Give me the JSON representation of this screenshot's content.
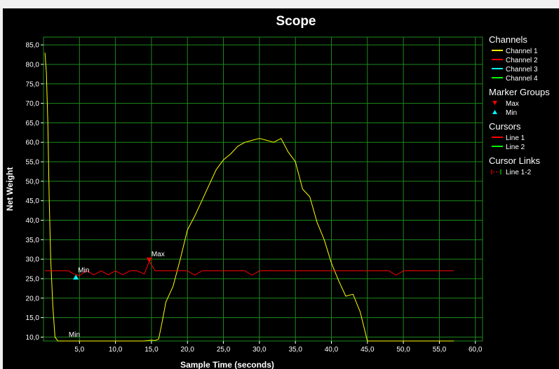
{
  "colors": {
    "background": "#000000",
    "grid": "#1c8a1c",
    "channel1": "#ffff00",
    "channel2": "#ff0000",
    "channel3": "#00ffff",
    "channel4": "#00ff00",
    "cursor1": "#ff0000",
    "cursor2": "#00ff00"
  },
  "chart_data": {
    "type": "line",
    "title": "Scope",
    "xlabel": "Sample Time (seconds)",
    "ylabel": "Net Weight",
    "xlim": [
      0,
      61
    ],
    "ylim": [
      9,
      87
    ],
    "grid": true,
    "legend_position": "right",
    "x_ticks": [
      "5,0",
      "10,0",
      "15,0",
      "20,0",
      "25,0",
      "30,0",
      "35,0",
      "40,0",
      "45,0",
      "50,0",
      "55,0",
      "60,0"
    ],
    "y_ticks": [
      "10,0",
      "15,0",
      "20,0",
      "25,0",
      "30,0",
      "35,0",
      "40,0",
      "45,0",
      "50,0",
      "55,0",
      "60,0",
      "65,0",
      "70,0",
      "75,0",
      "80,0",
      "85,0"
    ],
    "series": [
      {
        "name": "Channel 1",
        "x": [
          0.2,
          0.4,
          0.6,
          0.8,
          1.0,
          1.3,
          1.6,
          2.0,
          5.0,
          10.0,
          14.0,
          15.0,
          15.5,
          16.0,
          16.5,
          17.0,
          18.0,
          19.0,
          20.0,
          21.0,
          22.0,
          23.0,
          24.0,
          25.0,
          26.0,
          27.0,
          28.0,
          29.0,
          30.0,
          31.0,
          32.0,
          33.0,
          34.0,
          35.0,
          36.0,
          37.0,
          38.0,
          39.0,
          40.0,
          41.0,
          42.0,
          43.0,
          44.0,
          45.0,
          46.0,
          50.0,
          55.0,
          57.0
        ],
        "values": [
          83,
          78,
          65,
          45,
          30,
          18,
          10,
          9,
          9,
          9,
          9,
          9.2,
          9.1,
          9.5,
          14,
          19,
          23,
          30,
          37.5,
          41,
          45,
          49,
          53,
          55.5,
          57,
          59,
          60,
          60.5,
          61,
          60.5,
          60,
          61,
          57.5,
          55,
          48,
          46,
          39.5,
          35,
          29,
          24.5,
          20.5,
          21,
          16.5,
          9,
          9,
          9,
          9,
          9
        ]
      },
      {
        "name": "Channel 2",
        "x": [
          0.2,
          3.5,
          4.2,
          5.0,
          6.0,
          7.0,
          8.0,
          9.0,
          10.0,
          11.0,
          12.0,
          13.0,
          14.0,
          14.7,
          15.5,
          20.0,
          21.0,
          22.0,
          25.0,
          28.0,
          29.0,
          30.0,
          35.0,
          40.0,
          45.0,
          48.0,
          49.0,
          50.0,
          55.0,
          57.0
        ],
        "values": [
          27,
          27,
          26.2,
          25.8,
          27,
          26,
          27,
          26,
          27,
          26,
          27,
          27,
          26.2,
          29.5,
          27,
          27,
          25.9,
          27,
          27,
          27,
          25.9,
          27,
          27,
          27,
          27,
          27,
          25.9,
          27,
          27,
          27
        ]
      }
    ],
    "markers": [
      {
        "group": "Min",
        "x": 4.5,
        "y": 25.5,
        "label": "Min"
      },
      {
        "group": "Max",
        "x": 14.7,
        "y": 29.5,
        "label": "Max"
      },
      {
        "group": "Min",
        "x": 3.5,
        "y": 9.5,
        "label": "Min"
      }
    ]
  },
  "legend": {
    "channels": {
      "title": "Channels",
      "items": [
        {
          "label": "Channel 1",
          "color": "#ffff00"
        },
        {
          "label": "Channel 2",
          "color": "#ff0000"
        },
        {
          "label": "Channel 3",
          "color": "#00ffff"
        },
        {
          "label": "Channel 4",
          "color": "#00ff00"
        }
      ]
    },
    "marker_groups": {
      "title": "Marker Groups",
      "items": [
        {
          "label": "Max",
          "color": "#ff0000",
          "shape": "triangle-down"
        },
        {
          "label": "Min",
          "color": "#00ffff",
          "shape": "triangle-up"
        }
      ]
    },
    "cursors": {
      "title": "Cursors",
      "items": [
        {
          "label": "Line 1",
          "color": "#ff0000"
        },
        {
          "label": "Line 2",
          "color": "#00ff00"
        }
      ]
    },
    "cursor_links": {
      "title": "Cursor Links",
      "items": [
        {
          "label": "Line 1-2",
          "color": "#ff0000"
        }
      ]
    }
  }
}
